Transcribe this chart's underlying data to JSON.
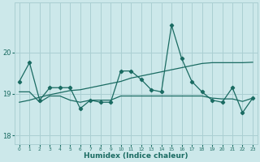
{
  "x": [
    0,
    1,
    2,
    3,
    4,
    5,
    6,
    7,
    8,
    9,
    10,
    11,
    12,
    13,
    14,
    15,
    16,
    17,
    18,
    19,
    20,
    21,
    22,
    23
  ],
  "y_main": [
    19.3,
    19.75,
    18.85,
    19.15,
    19.15,
    19.15,
    18.65,
    18.85,
    18.8,
    18.8,
    19.55,
    19.55,
    19.35,
    19.1,
    19.05,
    20.65,
    19.85,
    19.3,
    19.05,
    18.85,
    18.8,
    19.15,
    18.55,
    18.9
  ],
  "y_smooth": [
    19.05,
    19.05,
    18.8,
    18.95,
    18.95,
    18.85,
    18.8,
    18.85,
    18.85,
    18.85,
    18.95,
    18.95,
    18.95,
    18.95,
    18.95,
    18.95,
    18.95,
    18.95,
    18.95,
    18.9,
    18.88,
    18.88,
    18.82,
    18.9
  ],
  "y_trend": [
    18.8,
    18.85,
    18.92,
    18.98,
    19.03,
    19.08,
    19.1,
    19.15,
    19.2,
    19.25,
    19.3,
    19.38,
    19.43,
    19.48,
    19.53,
    19.58,
    19.63,
    19.68,
    19.73,
    19.75,
    19.75,
    19.75,
    19.75,
    19.76
  ],
  "background_color": "#cce8ea",
  "grid_color": "#aacfd2",
  "line_color": "#1a6b62",
  "xlabel": "Humidex (Indice chaleur)",
  "ylim": [
    17.8,
    21.2
  ],
  "xlim": [
    -0.5,
    23.5
  ],
  "yticks": [
    18,
    19,
    20
  ],
  "xticks": [
    0,
    1,
    2,
    3,
    4,
    5,
    6,
    7,
    8,
    9,
    10,
    11,
    12,
    13,
    14,
    15,
    16,
    17,
    18,
    19,
    20,
    21,
    22,
    23
  ]
}
